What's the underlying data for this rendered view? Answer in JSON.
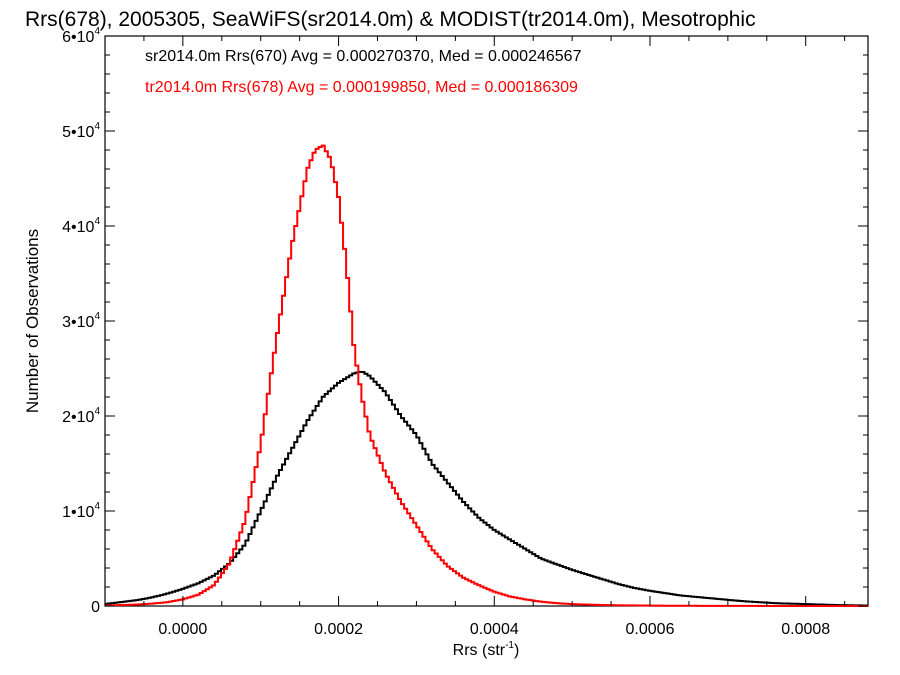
{
  "chart_data": {
    "type": "line",
    "title": "Rrs(678), 2005305, SeaWiFS(sr2014.0m) & MODIST(tr2014.0m), Mesotrophic",
    "xlabel_main": "Rrs (str",
    "xlabel_sup": "-1",
    "xlabel_end": ")",
    "ylabel": "Number of Observations",
    "xlim": [
      -0.0001,
      0.00088
    ],
    "ylim": [
      0,
      60000
    ],
    "x_ticks": [
      0.0,
      0.0002,
      0.0004,
      0.0006,
      0.0008
    ],
    "x_tick_labels": [
      "0.0000",
      "0.0002",
      "0.0004",
      "0.0006",
      "0.0008"
    ],
    "y_ticks": [
      {
        "value": 0,
        "mantissa": "0",
        "exp": ""
      },
      {
        "value": 10000,
        "mantissa": "1•10",
        "exp": "4"
      },
      {
        "value": 20000,
        "mantissa": "2•10",
        "exp": "4"
      },
      {
        "value": 30000,
        "mantissa": "3•10",
        "exp": "4"
      },
      {
        "value": 40000,
        "mantissa": "4•10",
        "exp": "4"
      },
      {
        "value": 50000,
        "mantissa": "5•10",
        "exp": "4"
      },
      {
        "value": 60000,
        "mantissa": "6•10",
        "exp": "4"
      }
    ],
    "legend": [
      {
        "text": "sr2014.0m Rrs(670) Avg = 0.000270370, Med = 0.000246567",
        "color": "#000000"
      },
      {
        "text": "tr2014.0m Rrs(678) Avg = 0.000199850, Med = 0.000186309",
        "color": "#ff0000"
      }
    ],
    "legend_placement": "top-left",
    "grid": false,
    "series": [
      {
        "color": "#000000",
        "x": [
          -0.0001,
          -8e-05,
          -6e-05,
          -4e-05,
          -2e-05,
          0.0,
          2e-05,
          4e-05,
          6e-05,
          8e-05,
          0.0001,
          0.00012,
          0.00014,
          0.00016,
          0.00018,
          0.0002,
          0.00021,
          0.00022,
          0.00023,
          0.00024,
          0.00026,
          0.00028,
          0.0003,
          0.00032,
          0.00034,
          0.00036,
          0.00038,
          0.0004,
          0.00042,
          0.00044,
          0.00046,
          0.00048,
          0.0005,
          0.00052,
          0.00054,
          0.00056,
          0.00058,
          0.0006,
          0.00064,
          0.00068,
          0.00072,
          0.00076,
          0.0008,
          0.00084,
          0.00088
        ],
        "y": [
          200,
          400,
          600,
          900,
          1300,
          1800,
          2400,
          3200,
          4500,
          6500,
          10000,
          13500,
          16500,
          19500,
          22000,
          23500,
          24000,
          24500,
          24700,
          24200,
          22500,
          20000,
          18000,
          15000,
          13000,
          11000,
          9300,
          8000,
          7000,
          6000,
          5000,
          4400,
          3800,
          3300,
          2800,
          2300,
          1900,
          1600,
          1100,
          800,
          500,
          300,
          200,
          100,
          50
        ]
      },
      {
        "color": "#ff0000",
        "x": [
          -0.0001,
          -8e-05,
          -6e-05,
          -4e-05,
          -2e-05,
          0.0,
          2e-05,
          4e-05,
          6e-05,
          8e-05,
          0.0001,
          0.00012,
          0.00014,
          0.00016,
          0.00017,
          0.00018,
          0.00019,
          0.0002,
          0.00021,
          0.00022,
          0.00023,
          0.00024,
          0.00026,
          0.00028,
          0.0003,
          0.00032,
          0.00034,
          0.00036,
          0.00038,
          0.0004,
          0.00042,
          0.00044,
          0.00046,
          0.00048,
          0.0005,
          0.00054,
          0.00058,
          0.00062,
          0.00066,
          0.0007,
          0.00076,
          0.00082,
          0.00088
        ],
        "y": [
          50,
          100,
          150,
          250,
          400,
          700,
          1200,
          2200,
          4500,
          9000,
          17000,
          28000,
          38000,
          46000,
          48000,
          48500,
          47000,
          43000,
          36000,
          27000,
          22000,
          18000,
          14000,
          11000,
          8500,
          6000,
          4200,
          3000,
          2200,
          1500,
          1000,
          700,
          450,
          300,
          200,
          100,
          60,
          30,
          20,
          10,
          5,
          2,
          0
        ]
      }
    ]
  }
}
